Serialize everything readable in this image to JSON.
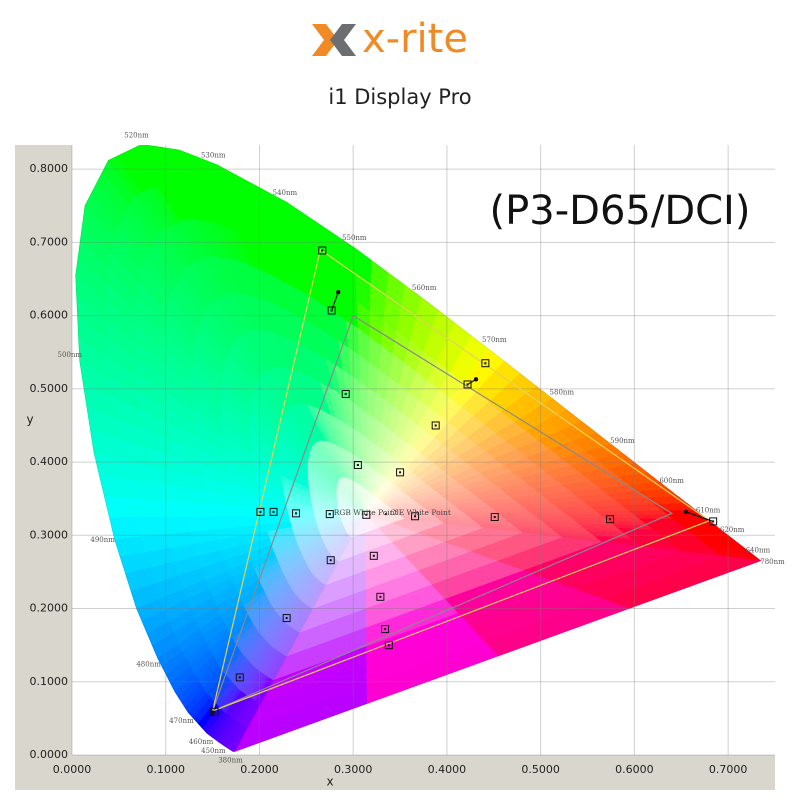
{
  "header": {
    "brand": "x-rite",
    "product": "i1 Display Pro"
  },
  "chart_data": {
    "type": "chromaticity",
    "annotation": "(P3-D65/DCI)",
    "x_label": "x",
    "y_label": "y",
    "xlim": [
      0,
      0.75
    ],
    "ylim": [
      0,
      0.833
    ],
    "xticks": [
      {
        "value": 0,
        "label": "0.0000"
      },
      {
        "value": 0.1,
        "label": "0.1000"
      },
      {
        "value": 0.2,
        "label": "0.2000"
      },
      {
        "value": 0.3,
        "label": "0.3000"
      },
      {
        "value": 0.4,
        "label": "0.4000"
      },
      {
        "value": 0.5,
        "label": "0.5000"
      },
      {
        "value": 0.6,
        "label": "0.6000"
      },
      {
        "value": 0.7,
        "label": "0.7000"
      }
    ],
    "yticks": [
      {
        "value": 0,
        "label": "0.0000"
      },
      {
        "value": 0.1,
        "label": "0.1000"
      },
      {
        "value": 0.2,
        "label": "0.2000"
      },
      {
        "value": 0.3,
        "label": "0.3000"
      },
      {
        "value": 0.4,
        "label": "0.4000"
      },
      {
        "value": 0.5,
        "label": "0.5000"
      },
      {
        "value": 0.6,
        "label": "0.6000"
      },
      {
        "value": 0.7,
        "label": "0.7000"
      },
      {
        "value": 0.8,
        "label": "0.8000"
      }
    ],
    "grid": true,
    "spectral_locus": {
      "labels": [
        "380nm",
        null,
        null,
        "450nm",
        "460nm",
        "470nm",
        null,
        "480nm",
        null,
        "490nm",
        null,
        "500nm",
        null,
        null,
        null,
        "520nm",
        null,
        "530nm",
        "540nm",
        "550nm",
        "560nm",
        "570nm",
        "580nm",
        "590nm",
        "600nm",
        "610nm",
        "620nm",
        "640nm",
        "780nm"
      ],
      "x": [
        0.1741,
        0.1714,
        0.1644,
        0.1566,
        0.144,
        0.1241,
        0.1096,
        0.0913,
        0.0687,
        0.0454,
        0.0235,
        0.0082,
        0.0039,
        0.0139,
        0.0389,
        0.0743,
        0.1142,
        0.1547,
        0.2296,
        0.3016,
        0.3731,
        0.4441,
        0.5125,
        0.5752,
        0.627,
        0.6658,
        0.6915,
        0.719,
        0.7347
      ],
      "y": [
        0.005,
        0.0051,
        0.0109,
        0.0177,
        0.0297,
        0.0578,
        0.0868,
        0.1327,
        0.2007,
        0.295,
        0.4127,
        0.5384,
        0.6548,
        0.7502,
        0.812,
        0.8338,
        0.8262,
        0.8059,
        0.7543,
        0.6923,
        0.6245,
        0.5547,
        0.4866,
        0.4242,
        0.3725,
        0.334,
        0.3083,
        0.2809,
        0.2653
      ]
    },
    "target_gamut": {
      "color": "#e3d25a",
      "x": [
        0.68,
        0.265,
        0.15
      ],
      "y": [
        0.32,
        0.69,
        0.06
      ]
    },
    "reference_gamut": {
      "color": "#8a8a8a",
      "x": [
        0.64,
        0.3,
        0.15
      ],
      "y": [
        0.33,
        0.6,
        0.06
      ]
    },
    "targets": {
      "color": "#111111",
      "x": [
        0.267,
        0.277,
        0.292,
        0.441,
        0.422,
        0.388,
        0.305,
        0.35,
        0.201,
        0.215,
        0.239,
        0.275,
        0.314,
        0.366,
        0.451,
        0.574,
        0.684,
        0.322,
        0.276,
        0.329,
        0.229,
        0.334,
        0.338,
        0.179,
        0.152
      ],
      "y": [
        0.689,
        0.607,
        0.493,
        0.535,
        0.506,
        0.45,
        0.396,
        0.386,
        0.332,
        0.332,
        0.33,
        0.329,
        0.328,
        0.326,
        0.325,
        0.322,
        0.319,
        0.272,
        0.266,
        0.216,
        0.187,
        0.172,
        0.15,
        0.106,
        0.059
      ]
    },
    "measured": {
      "color": "#111111",
      "x": [
        0.284,
        0.431,
        0.655,
        0.15
      ],
      "y": [
        0.632,
        0.513,
        0.332,
        0.058
      ]
    },
    "white_points": [
      {
        "label": "RGB White Point",
        "x": 0.275,
        "y": 0.329
      },
      {
        "label": "CIE White Point",
        "x": 0.335,
        "y": 0.329
      }
    ]
  }
}
